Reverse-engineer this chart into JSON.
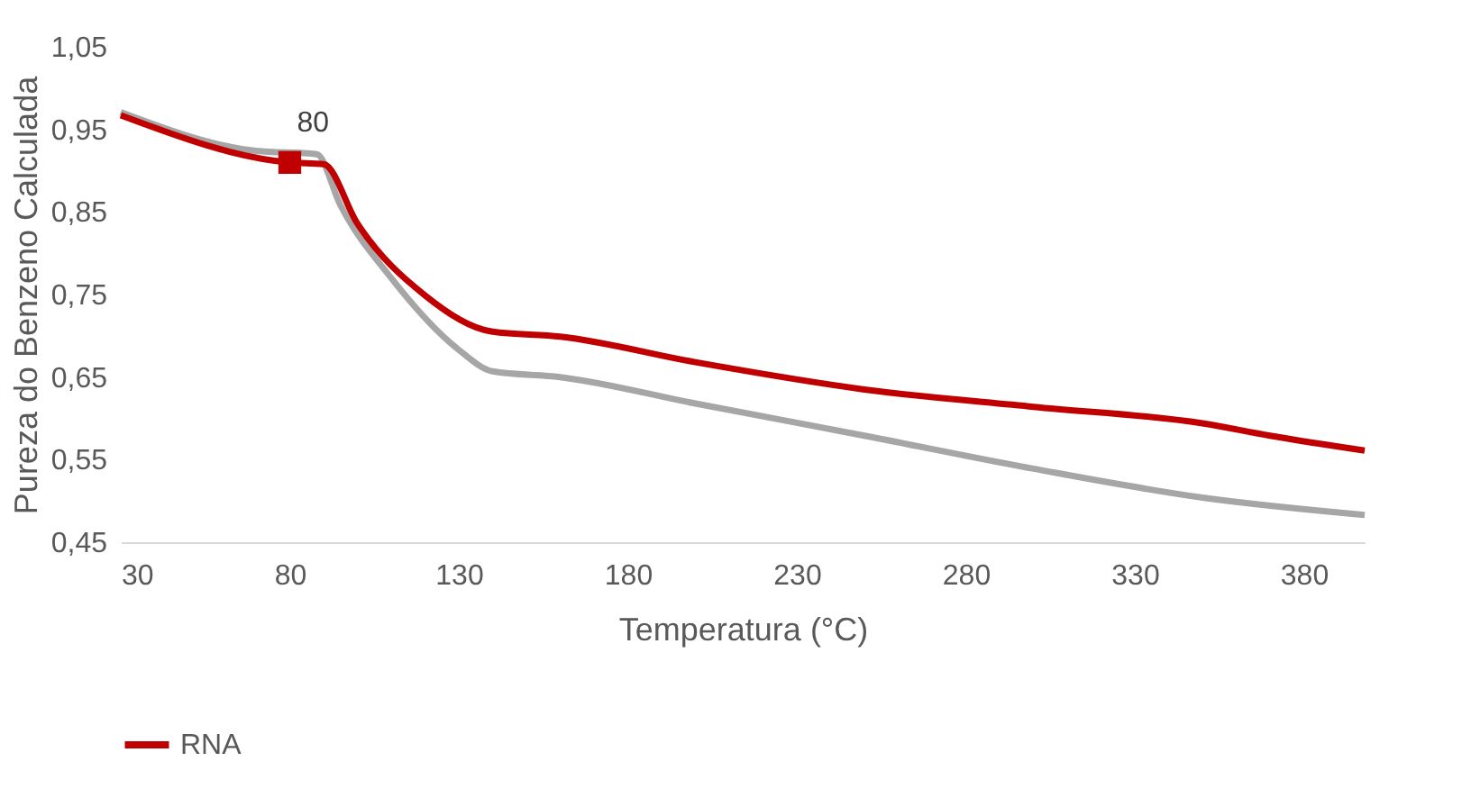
{
  "chart_data": {
    "type": "line",
    "xlabel": "Temperatura (°C)",
    "ylabel": "Pureza do Benzeno Calculada",
    "xlim": [
      30,
      398
    ],
    "xticks": [
      30,
      80,
      130,
      180,
      230,
      280,
      330,
      380
    ],
    "ylim": [
      0.45,
      1.05
    ],
    "yticks": [
      {
        "value": 0.45,
        "label": "0,45"
      },
      {
        "value": 0.55,
        "label": "0,55"
      },
      {
        "value": 0.65,
        "label": "0,65"
      },
      {
        "value": 0.75,
        "label": "0,75"
      },
      {
        "value": 0.85,
        "label": "0,85"
      },
      {
        "value": 0.95,
        "label": "0,95"
      },
      {
        "value": 1.05,
        "label": "1,05"
      }
    ],
    "grid": false,
    "legend": "bottom",
    "line_style": "solid",
    "marker": "none",
    "series": [
      {
        "color": "#a6a6a6",
        "x": [
          30,
          70,
          88,
          95,
          110,
          130,
          140,
          160,
          200,
          250,
          300,
          350,
          398
        ],
        "values": [
          0.971,
          0.924,
          0.92,
          0.858,
          0.77,
          0.683,
          0.657,
          0.65,
          0.618,
          0.579,
          0.539,
          0.504,
          0.483
        ]
      },
      {
        "name": "RNA",
        "color": "#c00000",
        "x": [
          30,
          80,
          90,
          100,
          120,
          140,
          160,
          200,
          250,
          300,
          350,
          370,
          398
        ],
        "values": [
          0.967,
          0.91,
          0.908,
          0.836,
          0.749,
          0.705,
          0.699,
          0.668,
          0.635,
          0.614,
          0.594,
          0.579,
          0.561
        ]
      },
      {
        "type": "scatter",
        "marker": "square",
        "color": "#c00000",
        "x": [
          80
        ],
        "values": [
          0.91
        ]
      }
    ],
    "annotations": [
      {
        "text": "80",
        "x": 80,
        "y": 0.91
      }
    ]
  }
}
